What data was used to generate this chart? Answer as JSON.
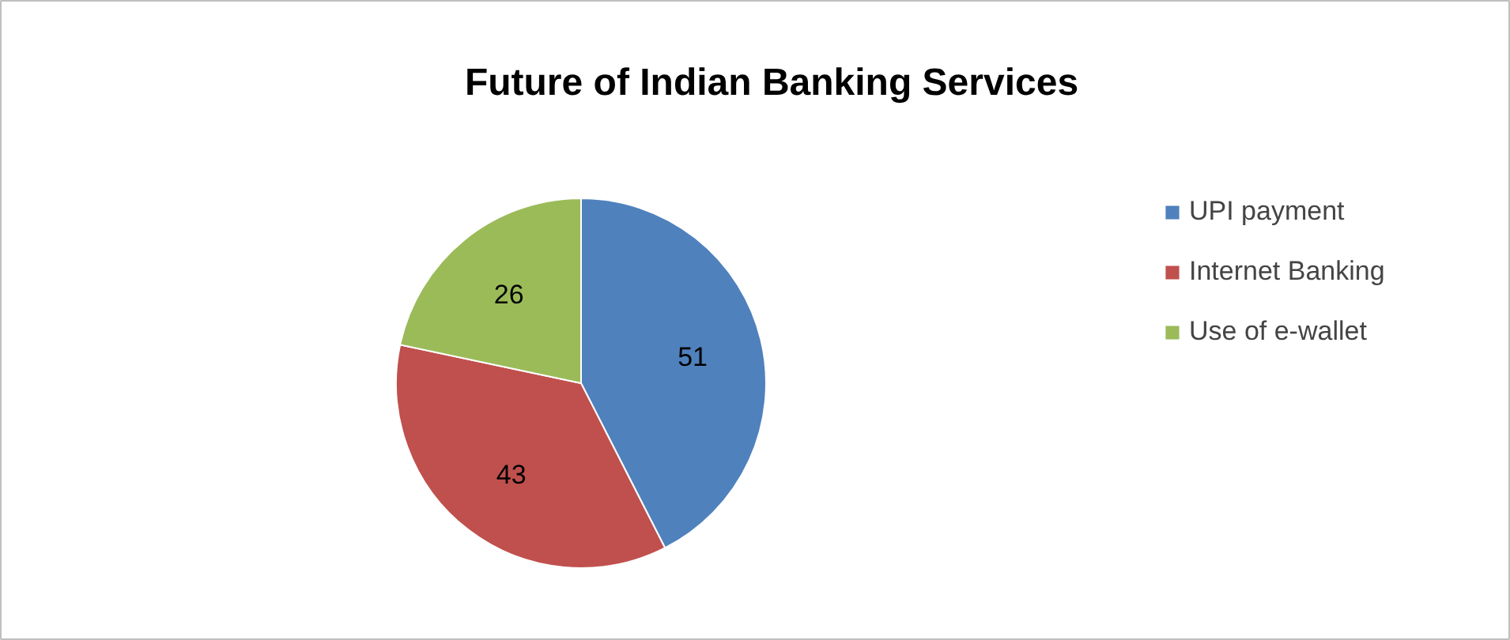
{
  "chart_data": {
    "type": "pie",
    "title": "Future of Indian Banking Services",
    "categories": [
      "UPI payment",
      "Internet Banking",
      "Use of e-wallet"
    ],
    "values": [
      51,
      43,
      26
    ],
    "colors": [
      "#4f81bd",
      "#c0504d",
      "#9bbb59"
    ],
    "data_labels": true,
    "legend": "right"
  }
}
